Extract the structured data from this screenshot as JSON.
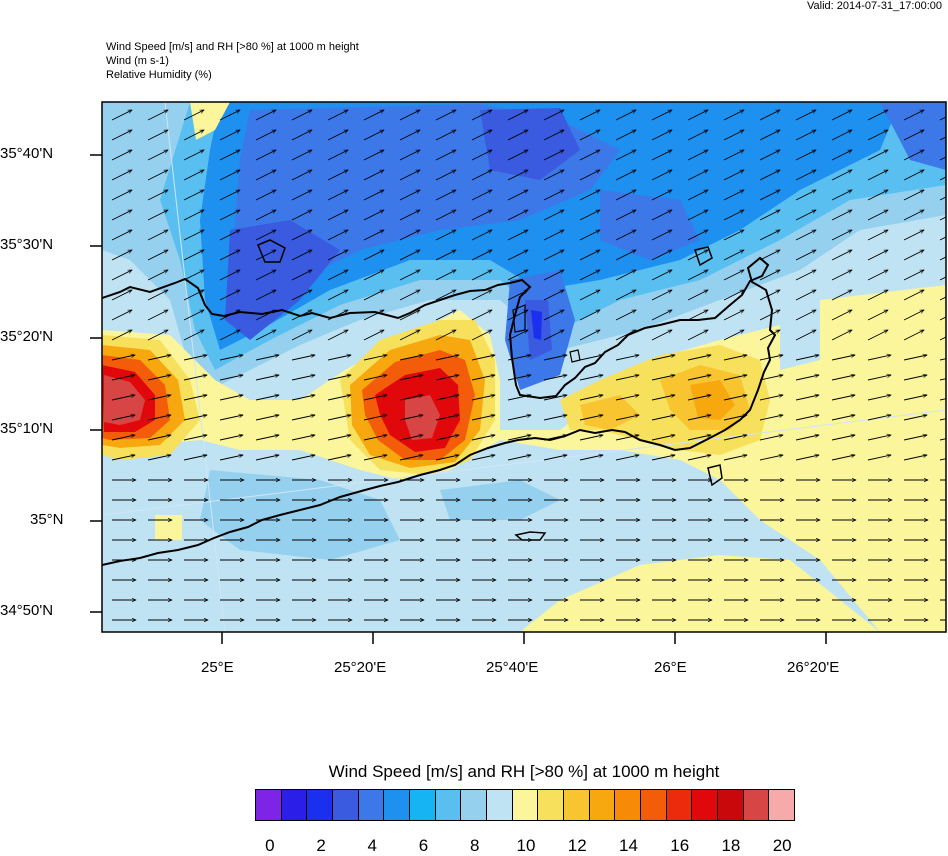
{
  "valid": "Valid: 2014-07-31_17:00:00",
  "header": {
    "line1": "Wind Speed [m/s] and RH [>80 %] at 1000 m height",
    "line2": "Wind   (m s-1)",
    "line3": "Relative Humidity   (%)"
  },
  "lat_labels": [
    "35°40'N",
    "35°30'N",
    "35°20'N",
    "35°10'N",
    "35°N",
    "34°50'N"
  ],
  "lon_labels": [
    "25°E",
    "25°20'E",
    "25°40'E",
    "26°E",
    "26°20'E"
  ],
  "colorbar": {
    "title": "Wind Speed [m/s] and RH [>80 %] at 1000 m height",
    "tick_labels": [
      "0",
      "2",
      "4",
      "6",
      "8",
      "10",
      "12",
      "14",
      "16",
      "18",
      "20"
    ],
    "colors": [
      "#7d24e6",
      "#2b1ee8",
      "#1a30ee",
      "#3a5ae0",
      "#3c78e8",
      "#1e90ef",
      "#17b4f4",
      "#58bff0",
      "#95d1ee",
      "#bfe3f3",
      "#fbf59b",
      "#f7e05b",
      "#f8c530",
      "#f8a80f",
      "#f78b07",
      "#f35d0a",
      "#ec2a0c",
      "#e1080b",
      "#c8080b",
      "#d84545",
      "#f6aaaa"
    ]
  },
  "wind_arrow_direction": "north-east",
  "island_name": "",
  "map_colors": {
    "background_field": "#bfe3f3",
    "coast": "#000000"
  }
}
